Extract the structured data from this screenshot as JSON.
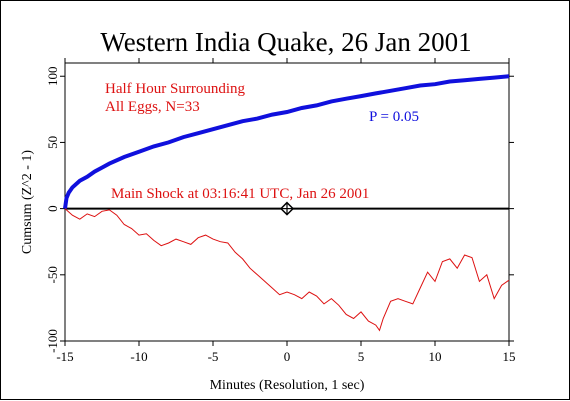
{
  "chart_data": {
    "type": "line",
    "title": "Western India Quake, 26 Jan 2001",
    "xlabel": "Minutes (Resolution, 1 sec)",
    "ylabel": "Cumsum (Z^2 - 1)",
    "xlim": [
      -15,
      15
    ],
    "ylim": [
      -100,
      110
    ],
    "x_ticks": [
      -15,
      -10,
      -5,
      0,
      5,
      10,
      15
    ],
    "y_ticks": [
      -100,
      -50,
      0,
      50,
      100
    ],
    "x_tick_labels": [
      "-15",
      "-10",
      "-5",
      "0",
      "5",
      "10",
      "15"
    ],
    "y_tick_labels": [
      "-100",
      "-50",
      "0",
      "50",
      "100"
    ],
    "grid": false,
    "annotations": {
      "dataset": [
        "Half Hour Surrounding",
        "All Eggs, N=33"
      ],
      "probability_label": "P = 0.05",
      "event_label": "Main Shock at 03:16:41 UTC, Jan 26 2001"
    },
    "event_marker": {
      "x": 0,
      "y": 0
    },
    "colors": {
      "cumsum": "#dd1111",
      "envelope": "#1010dd",
      "baseline": "#000000",
      "title": "#000000"
    },
    "series": [
      {
        "role": "cumsum",
        "x": [
          -15,
          -14.5,
          -14,
          -13.5,
          -13,
          -12.5,
          -12,
          -11.5,
          -11,
          -10.5,
          -10,
          -9.5,
          -9,
          -8.5,
          -8,
          -7.5,
          -7,
          -6.5,
          -6,
          -5.5,
          -5,
          -4.5,
          -4,
          -3.5,
          -3,
          -2.5,
          -2,
          -1.5,
          -1,
          -0.5,
          0,
          0.5,
          1,
          1.5,
          2,
          2.5,
          3,
          3.5,
          4,
          4.5,
          5,
          5.5,
          6,
          6.25,
          6.5,
          7,
          7.5,
          8,
          8.5,
          9,
          9.5,
          10,
          10.5,
          11,
          11.5,
          12,
          12.5,
          13,
          13.5,
          14,
          14.5,
          15
        ],
        "y": [
          0,
          -5,
          -8,
          -4,
          -6,
          -2,
          -1,
          -5,
          -12,
          -15,
          -20,
          -19,
          -24,
          -28,
          -26,
          -23,
          -25,
          -27,
          -22,
          -20,
          -23,
          -25,
          -26,
          -33,
          -38,
          -45,
          -50,
          -55,
          -60,
          -65,
          -63,
          -65,
          -68,
          -63,
          -66,
          -72,
          -68,
          -73,
          -80,
          -83,
          -78,
          -85,
          -88,
          -92,
          -83,
          -70,
          -68,
          -70,
          -72,
          -60,
          -48,
          -55,
          -40,
          -38,
          -45,
          -35,
          -37,
          -55,
          -50,
          -68,
          -58,
          -54
        ]
      },
      {
        "role": "envelope",
        "name": "P = 0.05",
        "x": [
          -15,
          -14.9,
          -14.75,
          -14.5,
          -14,
          -13.5,
          -13,
          -12.5,
          -12,
          -11,
          -10,
          -9,
          -8,
          -7,
          -6,
          -5,
          -4,
          -3,
          -2,
          -1,
          0,
          1,
          2,
          3,
          4,
          5,
          6,
          7,
          8,
          9,
          10,
          11,
          12,
          13,
          14,
          15
        ],
        "y": [
          0,
          8,
          12,
          16,
          21,
          24,
          28,
          31,
          34,
          39,
          43,
          47,
          50,
          54,
          57,
          60,
          63,
          66,
          68,
          71,
          73,
          76,
          78,
          81,
          83,
          85,
          87,
          89,
          91,
          93,
          94,
          96,
          97,
          98,
          99,
          100
        ]
      }
    ]
  }
}
